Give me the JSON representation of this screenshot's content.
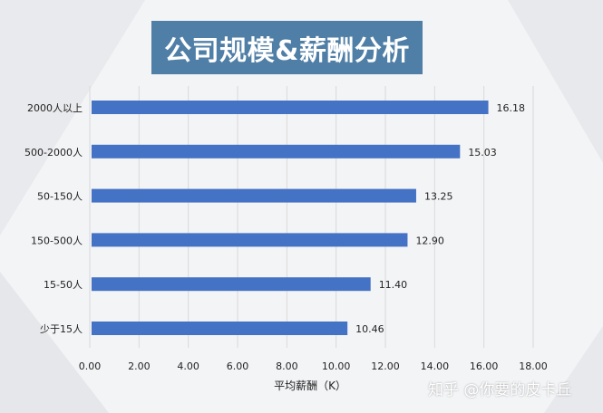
{
  "title": "公司规模&薪酬分析",
  "watermark": "知乎 @你要的皮卡丘",
  "colors": {
    "bar": "#4472c4",
    "title_bg": "#4f7ea6",
    "grid": "#d9d9d9",
    "text": "#222222"
  },
  "chart_data": {
    "type": "bar",
    "orientation": "horizontal",
    "categories": [
      "2000人以上",
      "500-2000人",
      "50-150人",
      "150-500人",
      "15-50人",
      "少于15人"
    ],
    "values": [
      16.18,
      15.03,
      13.25,
      12.9,
      11.4,
      10.46
    ],
    "value_labels": [
      "16.18",
      "15.03",
      "13.25",
      "12.90",
      "11.40",
      "10.46"
    ],
    "xlabel": "平均薪酬（K）",
    "xlim": [
      0,
      18
    ],
    "xticks": [
      "0.00",
      "2.00",
      "4.00",
      "6.00",
      "8.00",
      "10.00",
      "12.00",
      "14.00",
      "16.00",
      "18.00"
    ],
    "grid": true
  }
}
